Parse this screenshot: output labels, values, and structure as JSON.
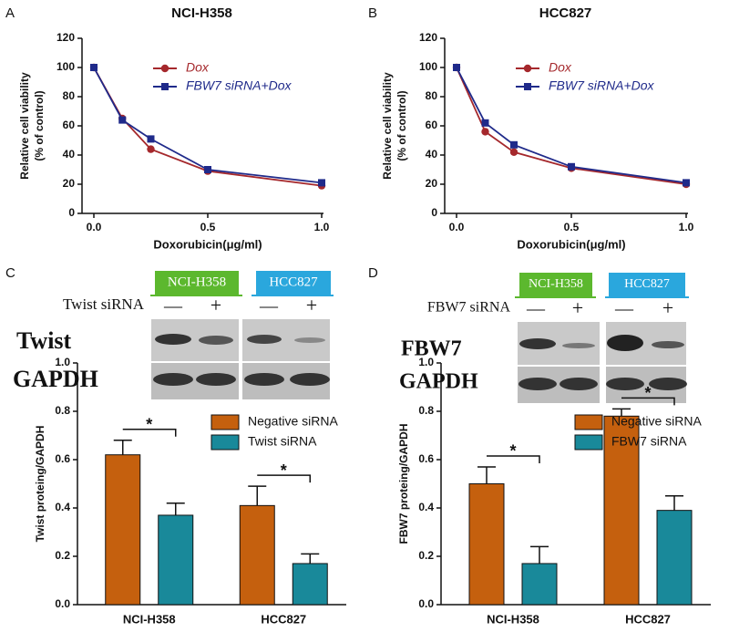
{
  "panels": [
    "A",
    "B",
    "C",
    "D"
  ],
  "blots": [
    {
      "groups": [
        "NCI-H358",
        "HCC827"
      ],
      "treatment": "Twist siRNA",
      "signs": [
        "—",
        "+",
        "—",
        "+"
      ],
      "rows": [
        "Twist",
        "GAPDH"
      ]
    },
    {
      "groups": [
        "NCI-H358",
        "HCC827"
      ],
      "treatment": "FBW7 siRNA",
      "signs": [
        "—",
        "+",
        "—",
        "+"
      ],
      "rows": [
        "FBW7",
        "GAPDH"
      ]
    }
  ],
  "chart_data": [
    {
      "type": "line",
      "title": "NCI-H358",
      "xlabel": "Doxorubicin(μg/ml)",
      "ylabel": [
        "Relative cell viability",
        "(% of control)"
      ],
      "x": [
        0,
        0.125,
        0.25,
        0.5,
        1.0
      ],
      "series": [
        {
          "name": "Dox",
          "color": "#a5282c",
          "marker": "circle",
          "values": [
            100,
            65,
            44,
            29,
            19
          ]
        },
        {
          "name": "FBW7 siRNA+Dox",
          "color": "#1f2a8a",
          "marker": "square",
          "values": [
            100,
            64,
            51,
            30,
            21
          ]
        }
      ],
      "xlim": [
        0,
        1.0
      ],
      "xticks": [
        {
          "value": 0,
          "label": "0.0"
        },
        0.5,
        {
          "value": 1.0,
          "label": "1.0"
        }
      ],
      "ylim": [
        0,
        120
      ],
      "yticks": [
        0,
        20,
        40,
        60,
        80,
        100,
        120
      ]
    },
    {
      "type": "line",
      "title": "HCC827",
      "xlabel": "Doxorubicin(μg/ml)",
      "ylabel": [
        "Relative cell viability",
        "(% of control)"
      ],
      "x": [
        0,
        0.125,
        0.25,
        0.5,
        1.0
      ],
      "series": [
        {
          "name": "Dox",
          "color": "#a5282c",
          "marker": "circle",
          "values": [
            100,
            56,
            42,
            31,
            20
          ]
        },
        {
          "name": "FBW7 siRNA+Dox",
          "color": "#1f2a8a",
          "marker": "square",
          "values": [
            100,
            62,
            47,
            32,
            21
          ]
        }
      ],
      "xlim": [
        0,
        1.0
      ],
      "xticks": [
        {
          "value": 0,
          "label": "0.0"
        },
        0.5,
        {
          "value": 1.0,
          "label": "1.0"
        }
      ],
      "ylim": [
        0,
        120
      ],
      "yticks": [
        0,
        20,
        40,
        60,
        80,
        100,
        120
      ]
    },
    {
      "type": "bar",
      "ylabel": "Twist proteing/GAPDH",
      "categories": [
        "NCI-H358",
        "HCC827"
      ],
      "series": [
        {
          "name": "Negative siRNA",
          "color": "#c5600e",
          "values": [
            0.62,
            0.41
          ],
          "errors": [
            0.06,
            0.08
          ]
        },
        {
          "name": "Twist siRNA",
          "color": "#19899a",
          "values": [
            0.37,
            0.17
          ],
          "errors": [
            0.05,
            0.04
          ]
        }
      ],
      "significance": [
        "*",
        "*"
      ],
      "ylim": [
        0,
        1.0
      ],
      "yticks": [
        {
          "value": 0,
          "label": "0.0"
        },
        0.2,
        0.4,
        0.6,
        0.8,
        {
          "value": 1.0,
          "label": "1.0"
        }
      ]
    },
    {
      "type": "bar",
      "ylabel": "FBW7 proteing/GAPDH",
      "categories": [
        "NCI-H358",
        "HCC827"
      ],
      "series": [
        {
          "name": "Negative siRNA",
          "color": "#c5600e",
          "values": [
            0.5,
            0.78
          ],
          "errors": [
            0.07,
            0.03
          ]
        },
        {
          "name": "FBW7 siRNA",
          "color": "#19899a",
          "values": [
            0.17,
            0.39
          ],
          "errors": [
            0.07,
            0.06
          ]
        }
      ],
      "significance": [
        "*",
        "*"
      ],
      "ylim": [
        0,
        1.0
      ],
      "yticks": [
        {
          "value": 0,
          "label": "0.0"
        },
        0.2,
        0.4,
        0.6,
        0.8,
        {
          "value": 1.0,
          "label": "1.0"
        }
      ]
    }
  ]
}
